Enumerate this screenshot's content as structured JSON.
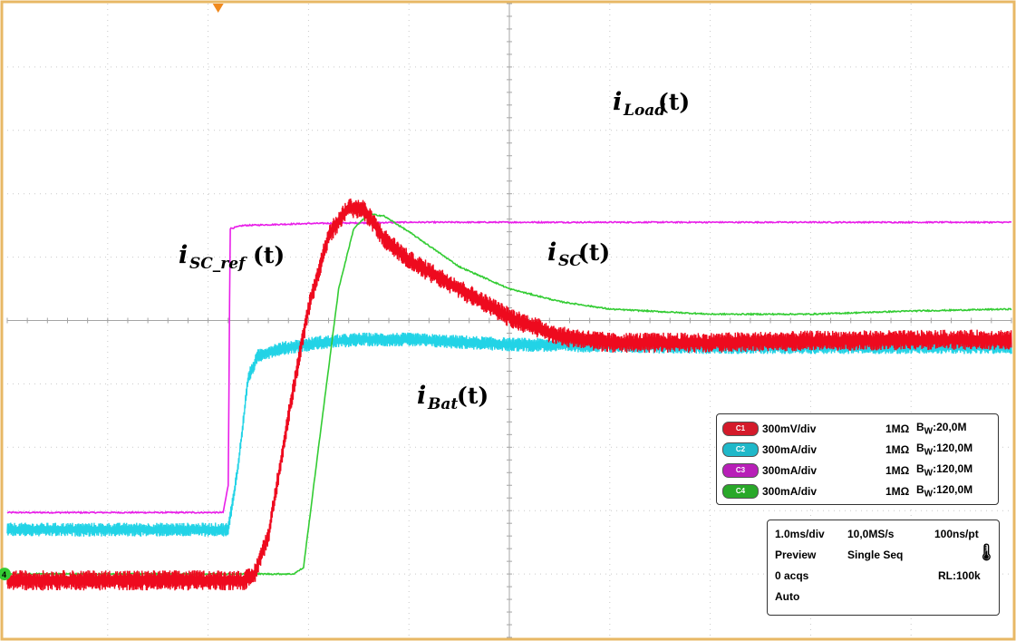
{
  "chart_data": {
    "type": "line",
    "title": "",
    "xlabel": "",
    "ylabel": "",
    "grid": true,
    "divisions": {
      "x": 10,
      "y": 10
    },
    "xlim": [
      0,
      10
    ],
    "ylim": [
      -5,
      5
    ],
    "x_unit": "div",
    "y_unit": "div",
    "annotations": [
      {
        "id": "load",
        "main": "i",
        "sub": "Load",
        "arg": "(t)"
      },
      {
        "id": "scref",
        "main": "i",
        "sub": "SC_ref",
        "arg": "(t)"
      },
      {
        "id": "sc",
        "main": "i",
        "sub": "SC",
        "arg": "(t)"
      },
      {
        "id": "bat",
        "main": "i",
        "sub": "Bat",
        "arg": "(t)"
      }
    ],
    "series": [
      {
        "channel": "C3",
        "color": "#e81ee8",
        "noise": 0.02,
        "points": [
          [
            0,
            -3.03
          ],
          [
            2.15,
            -3.03
          ],
          [
            2.2,
            -2.6
          ],
          [
            2.22,
            1.45
          ],
          [
            2.35,
            1.5
          ],
          [
            3.0,
            1.53
          ],
          [
            4.0,
            1.55
          ],
          [
            10,
            1.55
          ]
        ]
      },
      {
        "channel": "C2",
        "color": "#22d3e6",
        "noise": 0.22,
        "points": [
          [
            0,
            -3.3
          ],
          [
            2.2,
            -3.3
          ],
          [
            2.3,
            -2.3
          ],
          [
            2.4,
            -0.9
          ],
          [
            2.5,
            -0.55
          ],
          [
            2.7,
            -0.45
          ],
          [
            3.1,
            -0.35
          ],
          [
            3.5,
            -0.3
          ],
          [
            4.0,
            -0.3
          ],
          [
            5.0,
            -0.38
          ],
          [
            6.0,
            -0.4
          ],
          [
            7.0,
            -0.42
          ],
          [
            10,
            -0.42
          ]
        ]
      },
      {
        "channel": "C4",
        "color": "#33cc33",
        "noise": 0.02,
        "points": [
          [
            0,
            -4.0
          ],
          [
            2.85,
            -4.0
          ],
          [
            2.95,
            -3.9
          ],
          [
            3.1,
            -2.0
          ],
          [
            3.3,
            0.5
          ],
          [
            3.45,
            1.45
          ],
          [
            3.6,
            1.68
          ],
          [
            3.75,
            1.65
          ],
          [
            4.0,
            1.4
          ],
          [
            4.5,
            0.85
          ],
          [
            5.0,
            0.5
          ],
          [
            5.5,
            0.3
          ],
          [
            6.0,
            0.18
          ],
          [
            7.0,
            0.1
          ],
          [
            8.0,
            0.1
          ],
          [
            9.0,
            0.15
          ],
          [
            10,
            0.18
          ]
        ]
      },
      {
        "channel": "C1",
        "color": "#ee0a1e",
        "noise": 0.32,
        "points": [
          [
            0,
            -4.1
          ],
          [
            2.35,
            -4.1
          ],
          [
            2.45,
            -4.05
          ],
          [
            2.6,
            -3.4
          ],
          [
            2.8,
            -1.5
          ],
          [
            3.0,
            0.2
          ],
          [
            3.2,
            1.35
          ],
          [
            3.4,
            1.78
          ],
          [
            3.55,
            1.75
          ],
          [
            3.75,
            1.3
          ],
          [
            4.0,
            0.95
          ],
          [
            4.5,
            0.5
          ],
          [
            5.0,
            0.05
          ],
          [
            5.5,
            -0.25
          ],
          [
            6.0,
            -0.35
          ],
          [
            7.0,
            -0.35
          ],
          [
            8.0,
            -0.32
          ],
          [
            10,
            -0.3
          ]
        ]
      }
    ]
  },
  "channels": [
    {
      "id": "C1",
      "color": "#d41a2a",
      "scale": "300mV/div",
      "impedance": "1MΩ",
      "bw_prefix": "B",
      "bw_sub": "W",
      "bw_value": ":20,0M"
    },
    {
      "id": "C2",
      "color": "#1fb8c9",
      "scale": "300mA/div",
      "impedance": "1MΩ",
      "bw_prefix": "B",
      "bw_sub": "W",
      "bw_value": ":120,0M"
    },
    {
      "id": "C3",
      "color": "#b81fb8",
      "scale": "300mA/div",
      "impedance": "1MΩ",
      "bw_prefix": "B",
      "bw_sub": "W",
      "bw_value": ":120,0M"
    },
    {
      "id": "C4",
      "color": "#29a829",
      "scale": "300mA/div",
      "impedance": "1MΩ",
      "bw_prefix": "B",
      "bw_sub": "W",
      "bw_value": ":120,0M"
    }
  ],
  "acquisition": {
    "timebase": "1.0ms/div",
    "sample_rate": "10,0MS/s",
    "resolution": "100ns/pt",
    "mode": "Preview",
    "sequence": "Single Seq",
    "acqs": "0 acqs",
    "record_length": "RL:100k",
    "trigger": "Auto",
    "thermometer_icon": "thermometer-icon"
  },
  "markers": {
    "trigger_marker_color": "#f08a1e",
    "ground_marker_label": "4",
    "ground_marker_color": "#33cc33"
  },
  "frame_color": "#e8b865"
}
